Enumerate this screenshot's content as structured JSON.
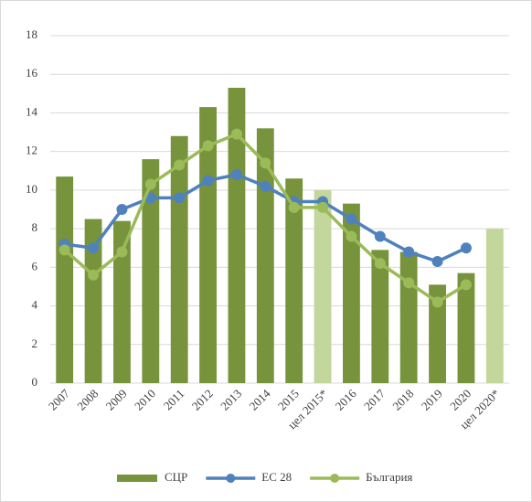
{
  "chart_data": {
    "type": "bar",
    "categories": [
      "2007",
      "2008",
      "2009",
      "2010",
      "2011",
      "2012",
      "2013",
      "2014",
      "2015",
      "цел 2015*",
      "2016",
      "2017",
      "2018",
      "2019",
      "2020",
      "цел 2020*"
    ],
    "series": [
      {
        "name": "СЦР",
        "color": "#77933c",
        "colors": [
          "#77933c",
          "#77933c",
          "#77933c",
          "#77933c",
          "#77933c",
          "#77933c",
          "#77933c",
          "#77933c",
          "#77933c",
          "#c3d69b",
          "#77933c",
          "#77933c",
          "#77933c",
          "#77933c",
          "#77933c",
          "#c3d69b"
        ],
        "values": [
          10.7,
          8.5,
          8.4,
          11.6,
          12.8,
          14.3,
          15.3,
          13.2,
          10.6,
          10,
          9.3,
          6.9,
          6.8,
          5.1,
          5.7,
          8
        ]
      },
      {
        "name": "ЕС 28",
        "type": "line",
        "color": "#4f81bd",
        "values": [
          7.2,
          7.0,
          9.0,
          9.6,
          9.6,
          10.5,
          10.8,
          10.2,
          9.4,
          9.4,
          8.5,
          7.6,
          6.8,
          6.3,
          7.0,
          null
        ]
      },
      {
        "name": "България",
        "type": "line",
        "color": "#9bbb59",
        "values": [
          6.9,
          5.6,
          6.8,
          10.3,
          11.3,
          12.3,
          12.9,
          11.4,
          9.1,
          9.1,
          7.6,
          6.2,
          5.2,
          4.2,
          5.1,
          null
        ]
      }
    ],
    "ylim": [
      0,
      18
    ],
    "yticks": [
      0,
      2,
      4,
      6,
      8,
      10,
      12,
      14,
      16,
      18
    ],
    "grid": true,
    "legend": "bottom"
  }
}
